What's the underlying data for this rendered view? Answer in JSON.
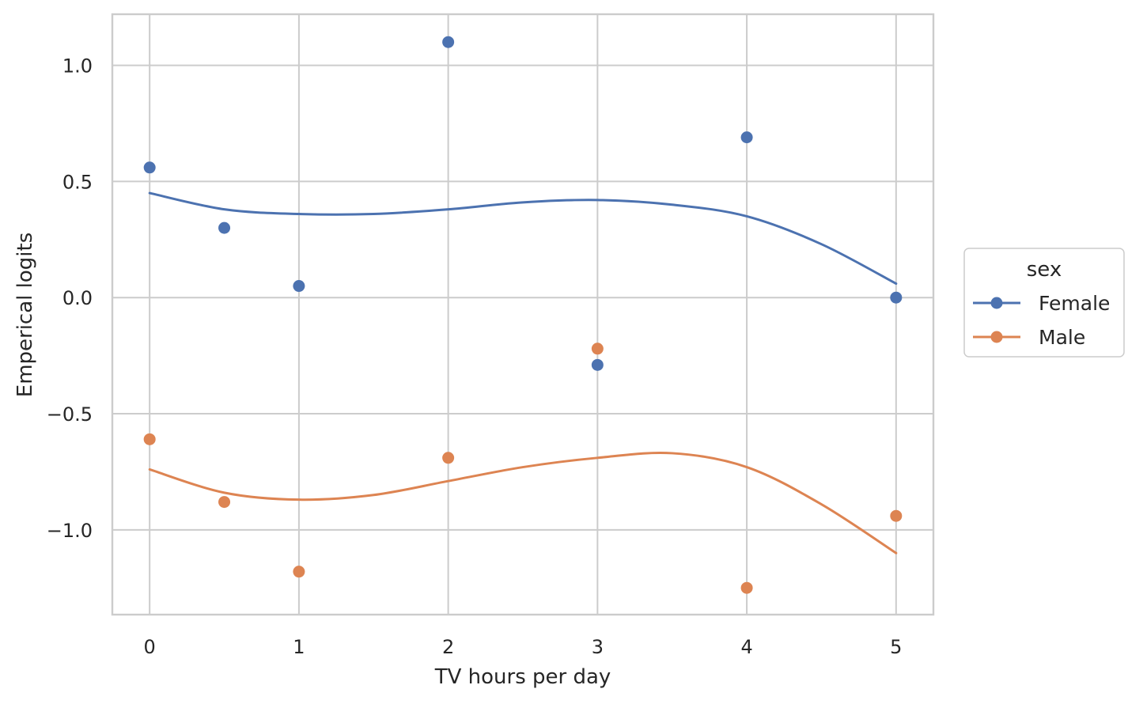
{
  "chart_data": {
    "type": "scatter",
    "xlabel": "TV hours per day",
    "ylabel": "Emperical logits",
    "xlim": [
      -0.25,
      5.25
    ],
    "ylim": [
      -1.365,
      1.22
    ],
    "xticks": [
      0,
      1,
      2,
      3,
      4,
      5
    ],
    "xtick_labels": [
      "0",
      "1",
      "2",
      "3",
      "4",
      "5"
    ],
    "yticks": [
      1.0,
      0.5,
      0.0,
      -0.5,
      -1.0
    ],
    "ytick_labels": [
      "1.0",
      "0.5",
      "0.0",
      "−0.5",
      "−1.0"
    ],
    "grid": true,
    "legend": {
      "title": "sex",
      "placement": "outside-right"
    },
    "series": [
      {
        "name": "Female",
        "color": "#4c72b0",
        "points": [
          {
            "x": 0,
            "y": 0.56
          },
          {
            "x": 0.5,
            "y": 0.3
          },
          {
            "x": 1,
            "y": 0.05
          },
          {
            "x": 2,
            "y": 1.1
          },
          {
            "x": 3,
            "y": -0.29
          },
          {
            "x": 4,
            "y": 0.69
          },
          {
            "x": 5,
            "y": 0.0
          }
        ],
        "fit": [
          {
            "x": 0,
            "y": 0.45
          },
          {
            "x": 0.5,
            "y": 0.38
          },
          {
            "x": 1,
            "y": 0.36
          },
          {
            "x": 1.5,
            "y": 0.36
          },
          {
            "x": 2,
            "y": 0.38
          },
          {
            "x": 2.5,
            "y": 0.41
          },
          {
            "x": 3,
            "y": 0.42
          },
          {
            "x": 3.5,
            "y": 0.4
          },
          {
            "x": 4,
            "y": 0.35
          },
          {
            "x": 4.5,
            "y": 0.23
          },
          {
            "x": 5,
            "y": 0.06
          }
        ]
      },
      {
        "name": "Male",
        "color": "#dd8452",
        "points": [
          {
            "x": 0,
            "y": -0.61
          },
          {
            "x": 0.5,
            "y": -0.88
          },
          {
            "x": 1,
            "y": -1.18
          },
          {
            "x": 2,
            "y": -0.69
          },
          {
            "x": 3,
            "y": -0.22
          },
          {
            "x": 4,
            "y": -1.25
          },
          {
            "x": 5,
            "y": -0.94
          }
        ],
        "fit": [
          {
            "x": 0,
            "y": -0.74
          },
          {
            "x": 0.5,
            "y": -0.84
          },
          {
            "x": 1,
            "y": -0.87
          },
          {
            "x": 1.5,
            "y": -0.85
          },
          {
            "x": 2,
            "y": -0.79
          },
          {
            "x": 2.5,
            "y": -0.73
          },
          {
            "x": 3,
            "y": -0.69
          },
          {
            "x": 3.5,
            "y": -0.67
          },
          {
            "x": 4,
            "y": -0.73
          },
          {
            "x": 4.5,
            "y": -0.89
          },
          {
            "x": 5,
            "y": -1.1
          }
        ]
      }
    ]
  }
}
